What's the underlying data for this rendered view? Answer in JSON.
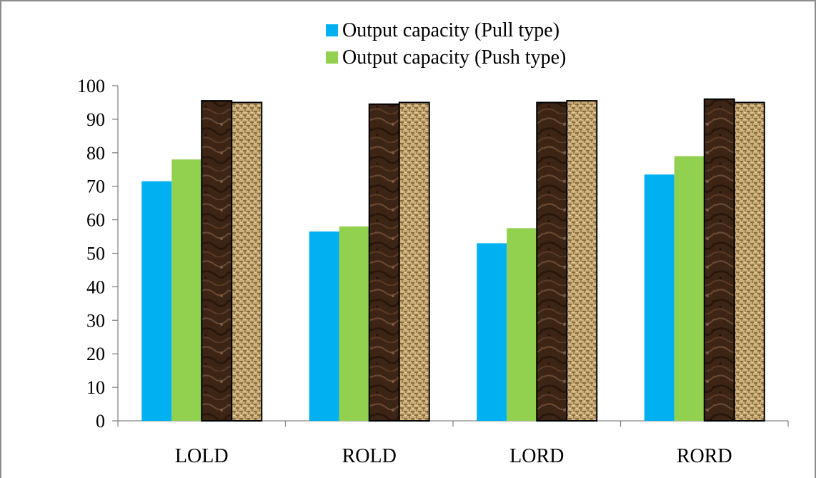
{
  "chart_data": {
    "type": "bar",
    "categories": [
      "LOLD",
      "ROLD",
      "LORD",
      "RORD"
    ],
    "series": [
      {
        "name": "Output capacity (Pull type)",
        "values": [
          71.5,
          56.5,
          53,
          73.5
        ],
        "fill": "solid",
        "color": "#00b0f0"
      },
      {
        "name": "Output capacity (Push type)",
        "values": [
          78,
          58,
          57.5,
          79
        ],
        "fill": "solid",
        "color": "#92d050"
      },
      {
        "values": [
          95.5,
          94.5,
          95,
          96
        ],
        "fill": "dark-marble-texture",
        "color": "#3d2516"
      },
      {
        "values": [
          95,
          95,
          95.5,
          95
        ],
        "fill": "burlap-weave-texture",
        "color": "#c9ad7a"
      }
    ],
    "ylim": [
      0,
      100
    ],
    "yticks": [
      "0",
      "10",
      "20",
      "30",
      "40",
      "50",
      "60",
      "70",
      "80",
      "90",
      "100"
    ],
    "grid": false,
    "legend": "top-center",
    "title": "",
    "xlabel": "",
    "ylabel": ""
  }
}
